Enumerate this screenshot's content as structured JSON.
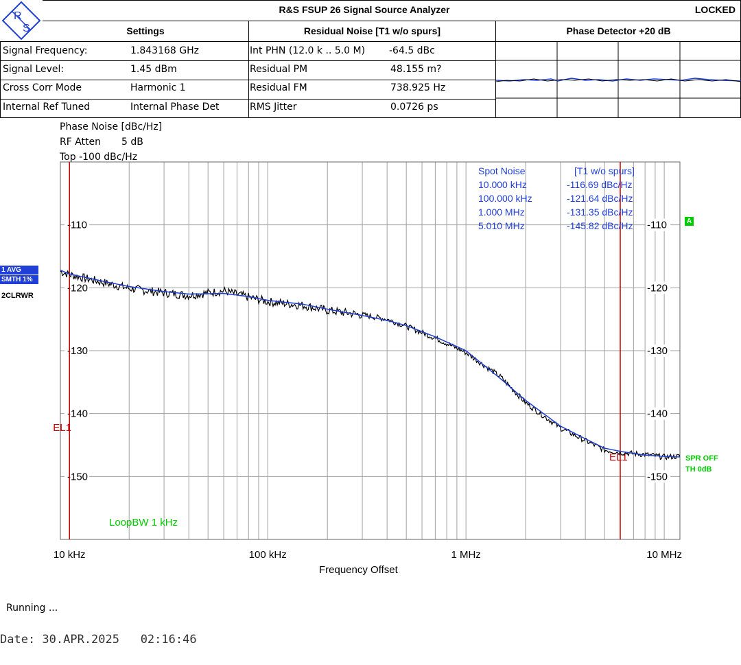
{
  "header": {
    "title": "R&S FSUP 26 Signal Source Analyzer",
    "status": "LOCKED",
    "settings_label": "Settings",
    "residual_label": "Residual Noise [T1 w/o spurs]",
    "phase_detector_label": "Phase Detector +20 dB"
  },
  "logo": {
    "text_top": "R",
    "text_bottom": "S"
  },
  "settings": [
    {
      "label": "Signal Frequency:",
      "value": "1.843168 GHz"
    },
    {
      "label": "Signal Level:",
      "value": "1.45 dBm"
    },
    {
      "label": "Cross Corr Mode",
      "value": "Harmonic 1"
    },
    {
      "label": "Internal Ref Tuned",
      "value": "Internal Phase Det"
    }
  ],
  "residual": [
    {
      "label": "Int PHN (12.0 k .. 5.0 M)",
      "value": "-64.5 dBc"
    },
    {
      "label": "Residual PM",
      "value": "48.155 m?"
    },
    {
      "label": "Residual FM",
      "value": "738.925 Hz"
    },
    {
      "label": "RMS Jitter",
      "value": "0.0726 ps"
    }
  ],
  "plot_info": {
    "unit_line": "Phase Noise [dBc/Hz]",
    "rf_atten_label": "RF Atten",
    "rf_atten_value": "5 dB",
    "top_line": "Top  -100 dBc/Hz"
  },
  "left_tags": {
    "avg": "1 AVG",
    "smth": "SMTH 1%",
    "clrwr": "2CLRWR"
  },
  "right_tags": {
    "a_marker": "A",
    "spr": "SPR OFF",
    "th": "TH 0dB"
  },
  "spot_noise": {
    "header_left": "Spot Noise",
    "header_right": "[T1 w/o spurs]",
    "rows": [
      {
        "freq": "10.000 kHz",
        "value": "-116.69 dBc/Hz"
      },
      {
        "freq": "100.000 kHz",
        "value": "-121.64 dBc/Hz"
      },
      {
        "freq": "1.000 MHz",
        "value": "-131.35 dBc/Hz"
      },
      {
        "freq": "5.010 MHz",
        "value": "-145.82 dBc/Hz"
      }
    ]
  },
  "loop_bw": "LoopBW 1 kHz",
  "el_label": "EL1",
  "footer": {
    "running": "Running ...",
    "date": "Date: 30.APR.2025   02:16:46"
  },
  "colors": {
    "trace": "#000000",
    "smooth": "#1f3fd6",
    "marker": "#cc0000",
    "green": "#00cc00",
    "grid": "#a0a0a0"
  },
  "chart_data": {
    "type": "line",
    "xlabel": "Frequency Offset",
    "ylabel": "",
    "xscale": "log",
    "xlim": [
      9000,
      12000000
    ],
    "ylim": [
      -160,
      -100
    ],
    "x_tick_labels": [
      "10 kHz",
      "100 kHz",
      "1 MHz",
      "10 MHz"
    ],
    "x_tick_values": [
      10000,
      100000,
      1000000,
      10000000
    ],
    "y_tick_labels": [
      "-110",
      "-120",
      "-130",
      "-140",
      "-150"
    ],
    "y_tick_values": [
      -110,
      -120,
      -130,
      -140,
      -150
    ],
    "grid": true,
    "markers": [
      {
        "label": "EL1",
        "x": 10000
      },
      {
        "label": "EL1",
        "x": 6000000
      }
    ],
    "series": [
      {
        "name": "1 AVG",
        "x": [
          9000,
          10000,
          15000,
          20000,
          30000,
          40000,
          60000,
          80000,
          100000,
          150000,
          200000,
          300000,
          400000,
          500000,
          700000,
          1000000,
          1500000,
          2000000,
          3000000,
          4000000,
          5000000,
          6000000,
          8000000,
          10000000,
          12000000
        ],
        "values": [
          -117.2,
          -117.8,
          -119.0,
          -119.8,
          -120.6,
          -121.0,
          -120.9,
          -121.4,
          -122.0,
          -122.6,
          -123.4,
          -124.4,
          -125.2,
          -126.0,
          -127.8,
          -130.0,
          -134.5,
          -137.9,
          -142.0,
          -144.0,
          -145.5,
          -146.0,
          -146.6,
          -146.8,
          -146.9
        ]
      },
      {
        "name": "2CLRWR",
        "x": [
          9000,
          10000,
          15000,
          20000,
          30000,
          40000,
          60000,
          80000,
          100000,
          150000,
          200000,
          300000,
          400000,
          500000,
          700000,
          1000000,
          1500000,
          2000000,
          3000000,
          4000000,
          5000000,
          6000000,
          8000000,
          10000000,
          12000000
        ],
        "values": [
          -117.4,
          -117.9,
          -119.2,
          -120.1,
          -120.8,
          -121.2,
          -120.5,
          -121.5,
          -122.2,
          -122.8,
          -123.6,
          -124.3,
          -125.0,
          -126.1,
          -128.0,
          -130.3,
          -134.2,
          -138.3,
          -142.3,
          -144.3,
          -145.8,
          -146.2,
          -146.5,
          -146.9,
          -146.8
        ]
      }
    ]
  }
}
